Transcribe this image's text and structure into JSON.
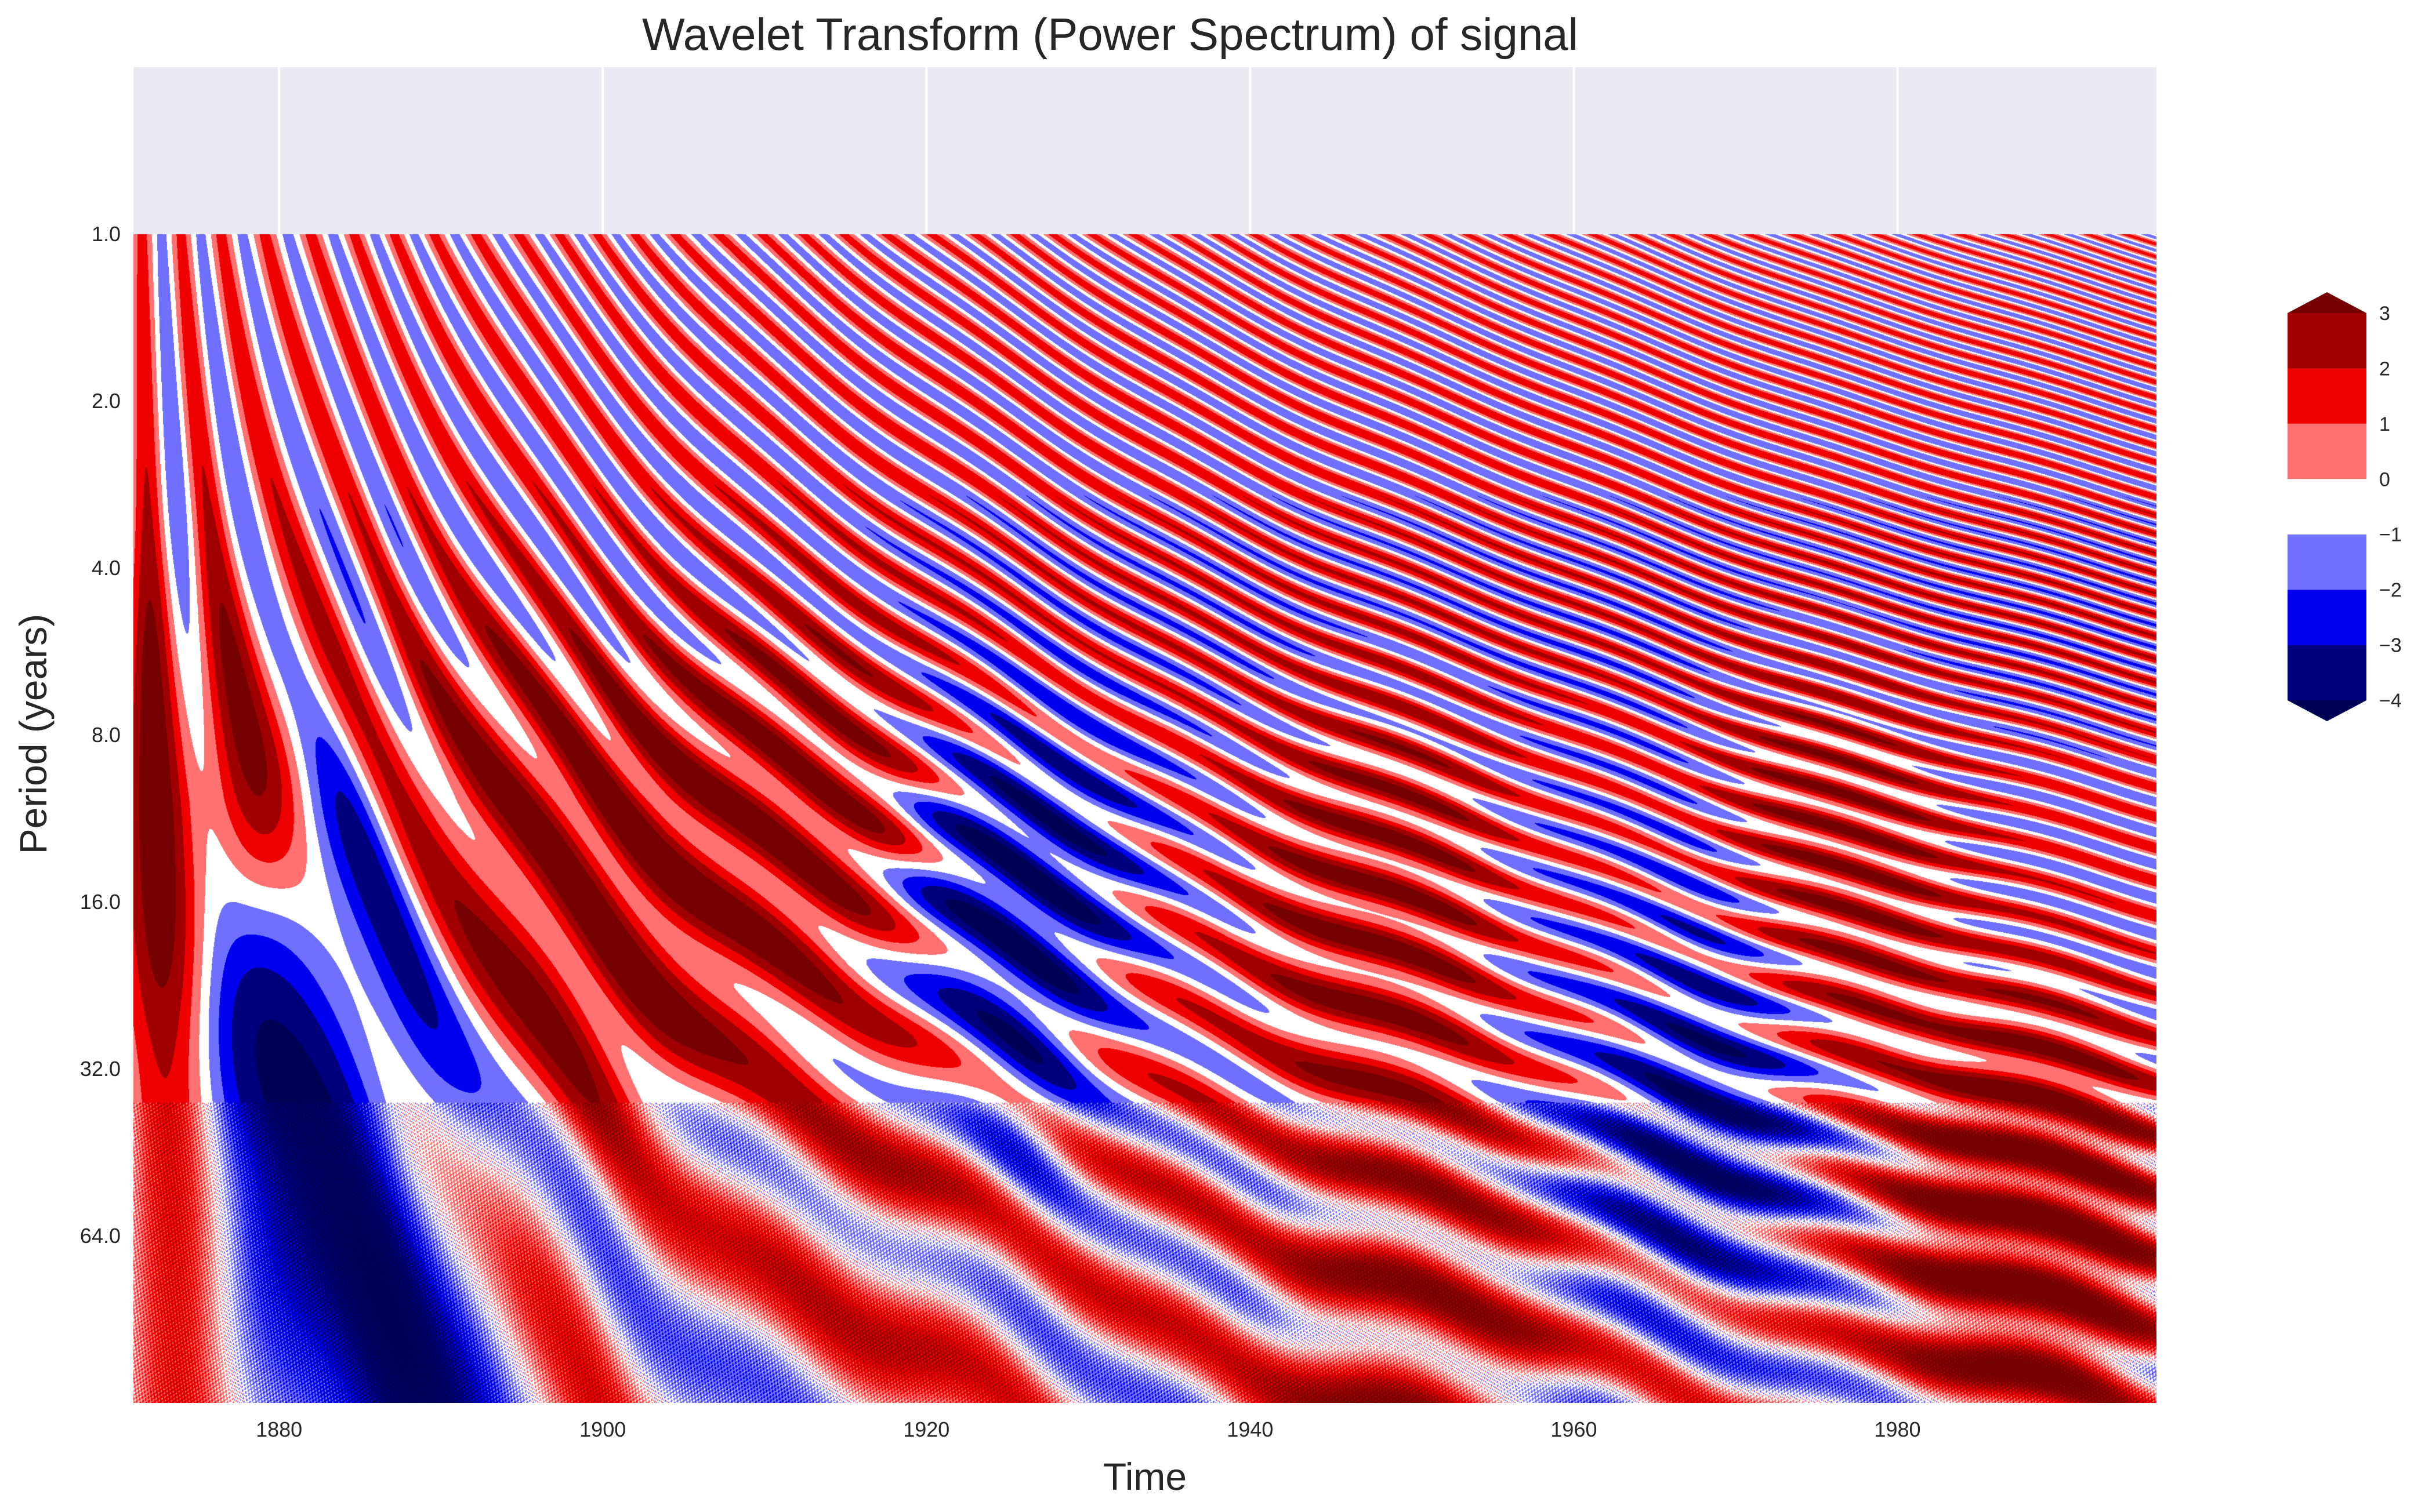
{
  "chart_data": {
    "type": "heatmap",
    "title": "Wavelet Transform (Power Spectrum) of signal",
    "xlabel": "Time",
    "ylabel": "Period (years)",
    "xlim": [
      1871,
      1996
    ],
    "ylim": [
      128,
      0.5
    ],
    "y_scale": "log2",
    "x_ticks": [
      1880,
      1900,
      1920,
      1940,
      1960,
      1980
    ],
    "x_tick_labels": [
      "1880",
      "1900",
      "1920",
      "1940",
      "1960",
      "1980"
    ],
    "y_ticks": [
      1,
      2,
      4,
      8,
      16,
      32,
      64
    ],
    "y_tick_labels": [
      "1.0",
      "2.0",
      "4.0",
      "8.0",
      "16.0",
      "32.0",
      "64.0"
    ],
    "data_y_range": [
      1,
      128
    ],
    "grid": true,
    "colorbar": {
      "levels": [
        -4,
        -3,
        -2,
        -1,
        0,
        1,
        2,
        3
      ],
      "tick_labels": [
        "−4",
        "−3",
        "−2",
        "−1",
        "0",
        "1",
        "2",
        "3"
      ],
      "extend": "both",
      "colors": [
        "#000055",
        "#00007f",
        "#0000ef",
        "#7070ff",
        "#ffffff",
        "#ff7070",
        "#ef0000",
        "#a00000",
        "#750000"
      ]
    },
    "cycle_centers": [
      1875,
      1878,
      1881,
      1885,
      1888,
      1892,
      1895,
      1899,
      1902,
      1906,
      1909,
      1913,
      1916,
      1920,
      1923,
      1927,
      1930,
      1934,
      1937,
      1941,
      1944,
      1948,
      1951,
      1955,
      1958,
      1962,
      1965,
      1969,
      1972,
      1976,
      1979,
      1983,
      1986,
      1990,
      1993
    ],
    "regions": [
      {
        "x": 1874,
        "y": 10,
        "value": 2.5
      },
      {
        "x": 1884,
        "y": 22,
        "value": -3.5
      },
      {
        "x": 1893,
        "y": 12,
        "value": 2.4
      },
      {
        "x": 1901,
        "y": 14,
        "value": 3.0
      },
      {
        "x": 1911,
        "y": 12,
        "value": 2.6
      },
      {
        "x": 1918,
        "y": 40,
        "value": 1.0
      },
      {
        "x": 1926,
        "y": 20,
        "value": -3.8
      },
      {
        "x": 1934,
        "y": 36,
        "value": 0.4
      },
      {
        "x": 1948,
        "y": 18,
        "value": 2.2
      },
      {
        "x": 1962,
        "y": 18,
        "value": -0.3
      },
      {
        "x": 1968,
        "y": 30,
        "value": -3.6
      },
      {
        "x": 1975,
        "y": 16,
        "value": 2.2
      },
      {
        "x": 1988,
        "y": 60,
        "value": 3.0
      },
      {
        "x": 1950,
        "y": 100,
        "value": 1.8
      },
      {
        "x": 1885,
        "y": 100,
        "value": -3.5
      }
    ]
  }
}
